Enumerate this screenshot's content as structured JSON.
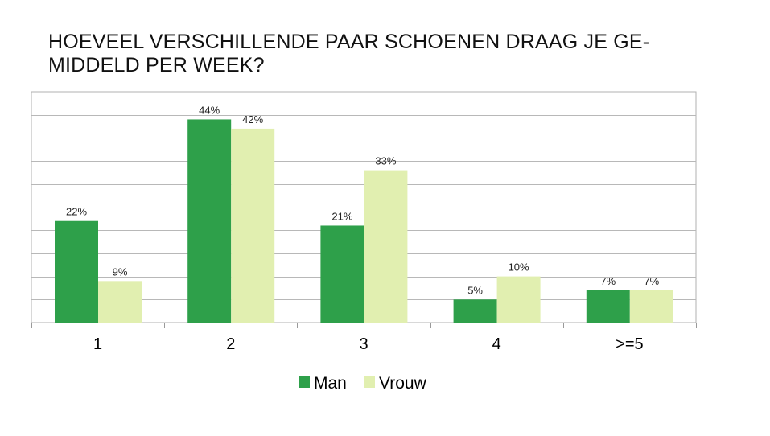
{
  "chart_data": {
    "type": "bar",
    "title": "HOEVEEL VERSCHILLENDE PAAR SCHOENEN DRAAG JE GEMIDDELD PER WEEK?",
    "title_lines": [
      "HOEVEEL VERSCHILLENDE PAAR SCHOENEN DRAAG JE GE-",
      "MIDDELD PER WEEK?"
    ],
    "categories": [
      "1",
      "2",
      "3",
      "4",
      ">=5"
    ],
    "series": [
      {
        "name": "Man",
        "values": [
          22,
          44,
          21,
          5,
          7
        ],
        "labels": [
          "22%",
          "44%",
          "21%",
          "5%",
          "7%"
        ],
        "color": "#2ea04a"
      },
      {
        "name": "Vrouw",
        "values": [
          9,
          42,
          33,
          10,
          7
        ],
        "labels": [
          "9%",
          "42%",
          "33%",
          "10%",
          "7%"
        ],
        "color": "#e1efb0"
      }
    ],
    "ylim": [
      0,
      50
    ],
    "grid": true,
    "legend": "bottom",
    "xlabel": "",
    "ylabel": ""
  }
}
